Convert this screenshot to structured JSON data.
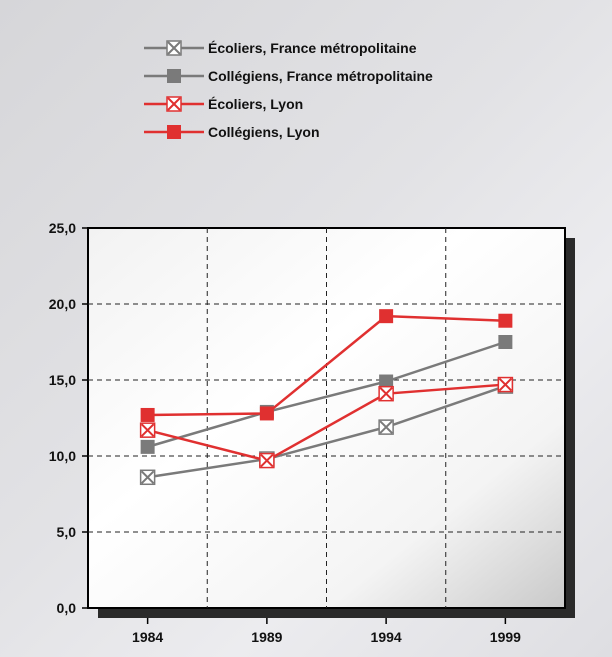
{
  "chart_data": {
    "type": "line",
    "x": [
      "1984",
      "1989",
      "1994",
      "1999"
    ],
    "y_ticks": [
      "0,0",
      "5,0",
      "10,0",
      "15,0",
      "20,0",
      "25,0"
    ],
    "ylim": [
      0,
      25
    ],
    "grid": true,
    "legend_position": "top",
    "series": [
      {
        "name": "Écoliers, France métropolitaine",
        "values": [
          8.6,
          9.8,
          11.9,
          14.6
        ],
        "color": "#7a7a7a",
        "marker": "x-box"
      },
      {
        "name": "Collégiens, France métropolitaine",
        "values": [
          10.6,
          12.9,
          14.9,
          17.5
        ],
        "color": "#7a7a7a",
        "marker": "square"
      },
      {
        "name": "Écoliers, Lyon",
        "values": [
          11.7,
          9.7,
          14.1,
          14.7
        ],
        "color": "#e03030",
        "marker": "x-box"
      },
      {
        "name": "Collégiens, Lyon",
        "values": [
          12.7,
          12.8,
          19.2,
          18.9
        ],
        "color": "#e03030",
        "marker": "square"
      }
    ]
  }
}
